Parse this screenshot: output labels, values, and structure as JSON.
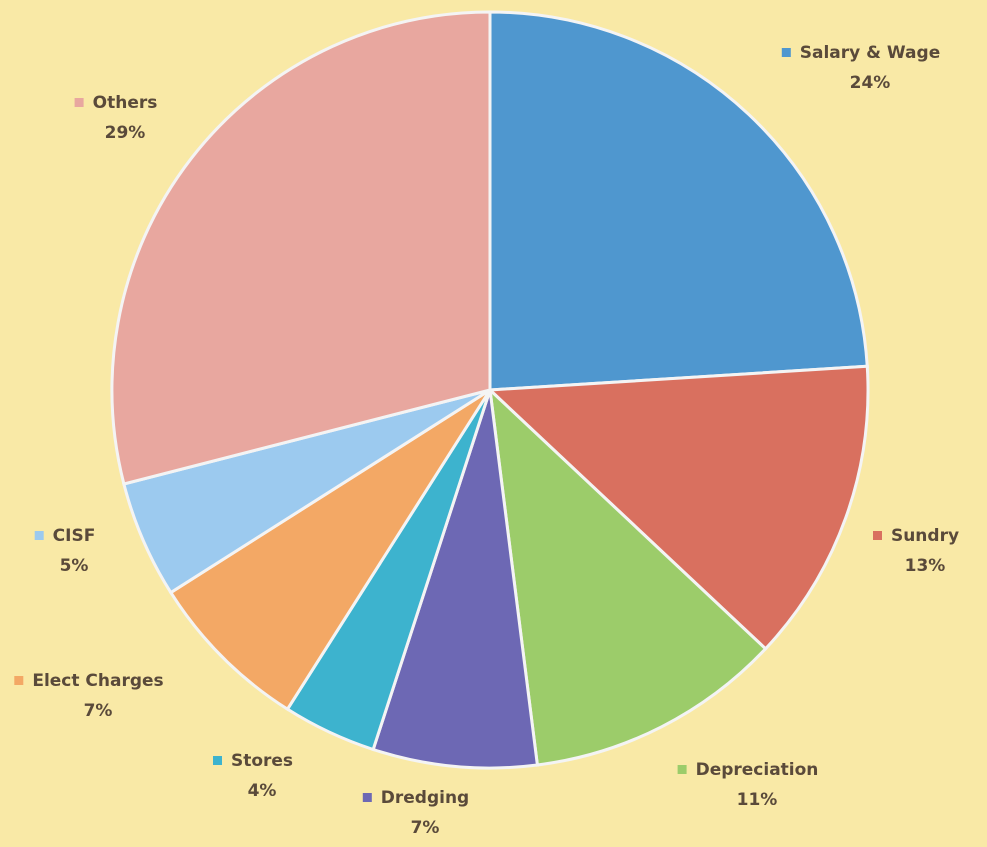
{
  "chart_data": {
    "type": "pie",
    "title": "",
    "slices": [
      {
        "label": "Salary & Wage",
        "value": 24,
        "percent_label": "24%",
        "color": "#4f97cf"
      },
      {
        "label": "Sundry",
        "value": 13,
        "percent_label": "13%",
        "color": "#d9705f"
      },
      {
        "label": "Depreciation",
        "value": 11,
        "percent_label": "11%",
        "color": "#9ccc6a"
      },
      {
        "label": "Dredging",
        "value": 7,
        "percent_label": "7%",
        "color": "#6d68b4"
      },
      {
        "label": "Stores",
        "value": 4,
        "percent_label": "4%",
        "color": "#3db3ce"
      },
      {
        "label": "Elect Charges",
        "value": 7,
        "percent_label": "7%",
        "color": "#f3a865"
      },
      {
        "label": "CISF",
        "value": 5,
        "percent_label": "5%",
        "color": "#9ccaef"
      },
      {
        "label": "Others",
        "value": 29,
        "percent_label": "29%",
        "color": "#e8a79f"
      }
    ],
    "legend": "labels-outside-slices",
    "start_angle": "12 o'clock, clockwise"
  }
}
